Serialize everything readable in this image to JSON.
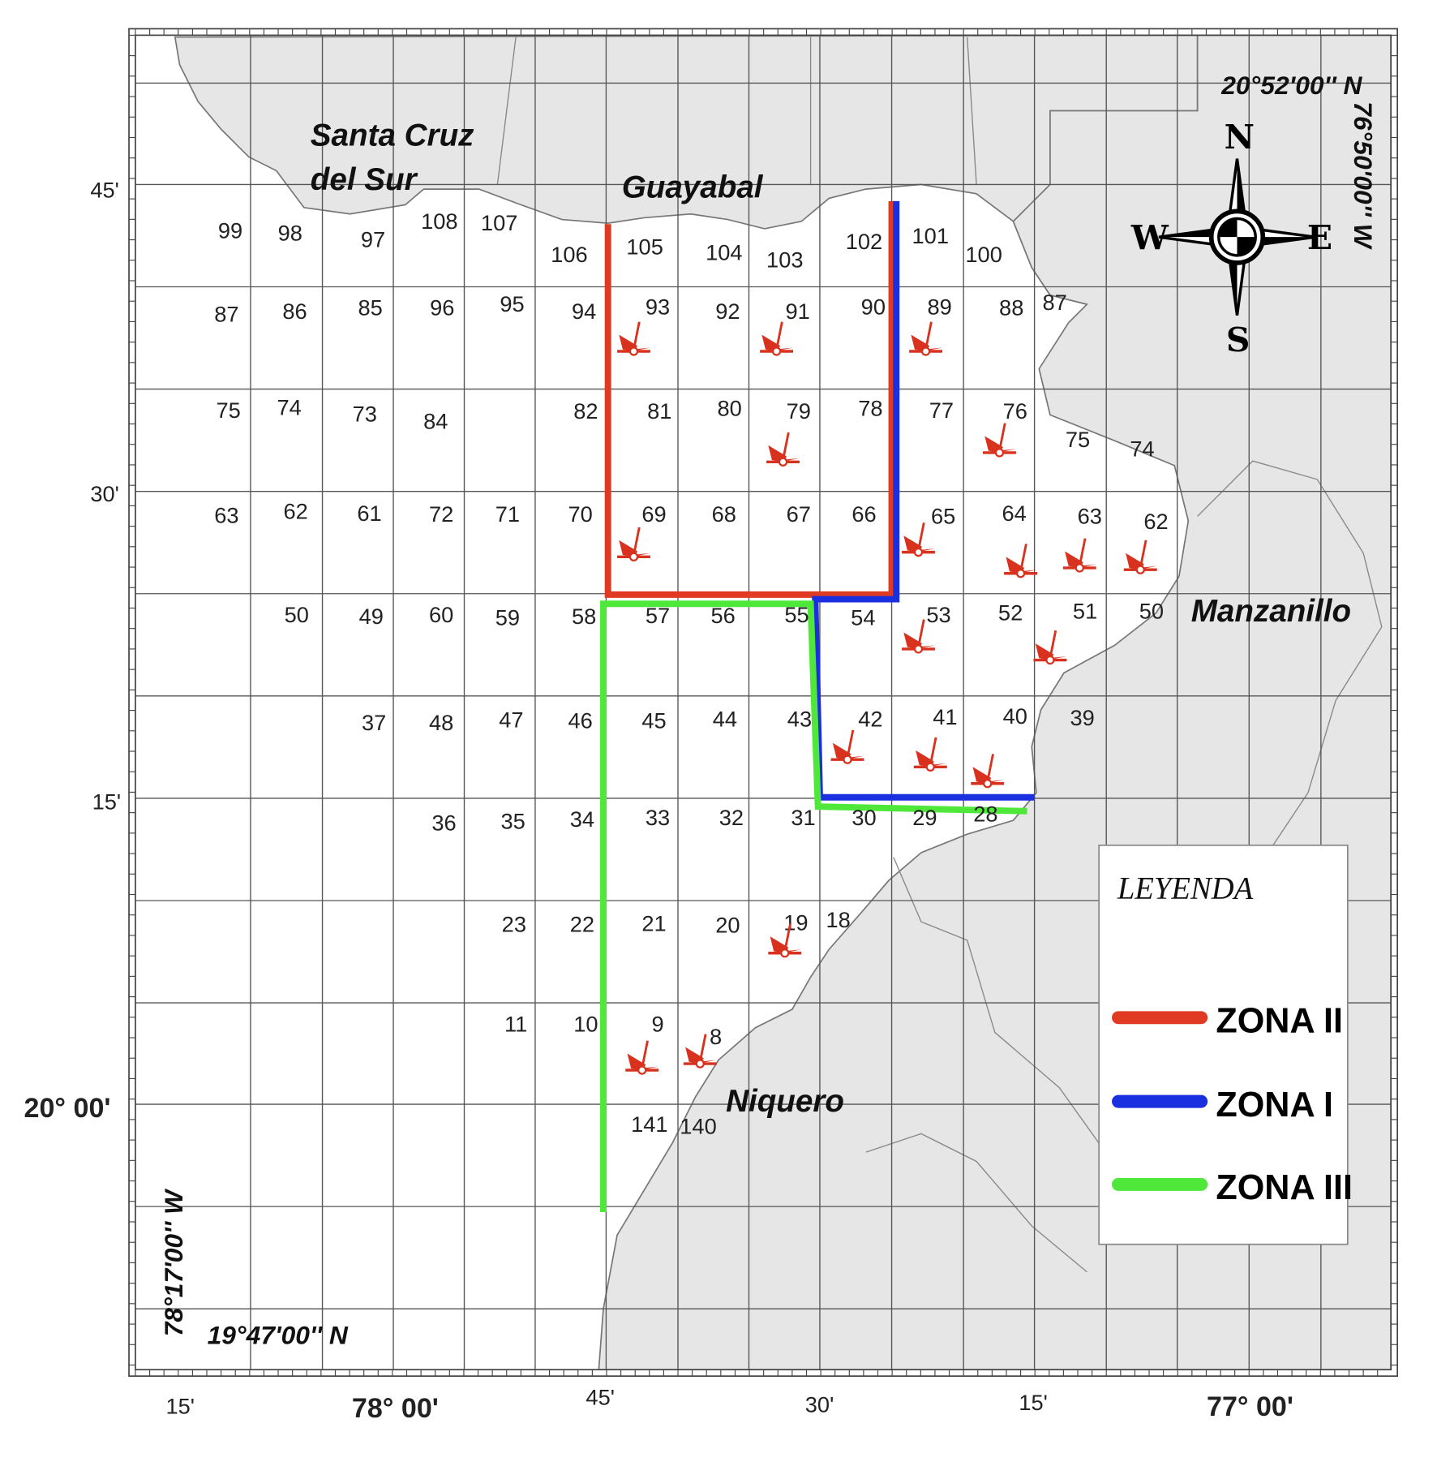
{
  "towns": {
    "santa_cruz_line1": "Santa Cruz",
    "santa_cruz_line2": "del Sur",
    "guayabal": "Guayabal",
    "manzanillo": "Manzanillo",
    "niquero": "Niquero"
  },
  "corners": {
    "top_right_lat": "20°52'00'' N",
    "top_right_lon": "76°50'00'' W",
    "bottom_left_lon": "78°17'00'' W",
    "bottom_left_lat": "19°47'00'' N"
  },
  "axis": {
    "bottom_ticks": [
      "15'",
      "78° 00'",
      "45'",
      "30'",
      "15'",
      "77° 00'"
    ],
    "left_ticks": [
      "45'",
      "30'",
      "15'",
      "20° 00'"
    ]
  },
  "compass": {
    "n": "N",
    "s": "S",
    "e": "E",
    "w": "W"
  },
  "legend": {
    "title": "LEYENDA",
    "items": [
      {
        "label": "ZONA II",
        "color": "#e03a22"
      },
      {
        "label": "ZONA I",
        "color": "#1a2fe0"
      },
      {
        "label": "ZONA III",
        "color": "#4fe83a"
      }
    ]
  },
  "cells": [
    "99",
    "98",
    "97",
    "108",
    "107",
    "106",
    "105",
    "104",
    "103",
    "102",
    "101",
    "100",
    "87",
    "86",
    "85",
    "96",
    "95",
    "94",
    "93",
    "92",
    "91",
    "90",
    "89",
    "88",
    "87",
    "75",
    "74",
    "73",
    "84",
    "82",
    "81",
    "80",
    "79",
    "78",
    "77",
    "76",
    "75",
    "74",
    "63",
    "62",
    "61",
    "72",
    "71",
    "70",
    "69",
    "68",
    "67",
    "66",
    "65",
    "64",
    "63",
    "62",
    "50",
    "49",
    "60",
    "59",
    "58",
    "57",
    "56",
    "55",
    "54",
    "53",
    "52",
    "51",
    "50",
    "37",
    "48",
    "47",
    "46",
    "45",
    "44",
    "43",
    "42",
    "41",
    "40",
    "39",
    "36",
    "35",
    "34",
    "33",
    "32",
    "31",
    "30",
    "29",
    "28",
    "23",
    "22",
    "21",
    "20",
    "19",
    "18",
    "11",
    "10",
    "9",
    "8",
    "141",
    "140"
  ],
  "colors": {
    "land": "#e6e6e6",
    "vessel": "#d8321e"
  }
}
